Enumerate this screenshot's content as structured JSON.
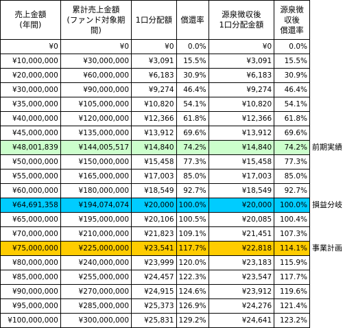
{
  "headers": [
    "売上金額\n(年間)",
    "累計売上金額\n(ファンド対象期間)",
    "1口分配額",
    "償還率",
    "源泉徴収後\n1口分配金額",
    "源泉徴収後\n償還率"
  ],
  "rows": [
    {
      "cells": [
        "¥0",
        "¥0",
        "¥0",
        "0.0%",
        "¥0",
        "0.0%"
      ],
      "note": "",
      "highlight": ""
    },
    {
      "cells": [
        "¥10,000,000",
        "¥30,000,000",
        "¥3,091",
        "15.5%",
        "¥3,091",
        "15.5%"
      ],
      "note": "",
      "highlight": ""
    },
    {
      "cells": [
        "¥20,000,000",
        "¥60,000,000",
        "¥6,183",
        "30.9%",
        "¥6,183",
        "30.9%"
      ],
      "note": "",
      "highlight": ""
    },
    {
      "cells": [
        "¥30,000,000",
        "¥90,000,000",
        "¥9,274",
        "46.4%",
        "¥9,274",
        "46.4%"
      ],
      "note": "",
      "highlight": ""
    },
    {
      "cells": [
        "¥35,000,000",
        "¥105,000,000",
        "¥10,820",
        "54.1%",
        "¥10,820",
        "54.1%"
      ],
      "note": "",
      "highlight": ""
    },
    {
      "cells": [
        "¥40,000,000",
        "¥120,000,000",
        "¥12,366",
        "61.8%",
        "¥12,366",
        "61.8%"
      ],
      "note": "",
      "highlight": ""
    },
    {
      "cells": [
        "¥45,000,000",
        "¥135,000,000",
        "¥13,912",
        "69.6%",
        "¥13,912",
        "69.6%"
      ],
      "note": "",
      "highlight": ""
    },
    {
      "cells": [
        "¥48,001,839",
        "¥144,005,517",
        "¥14,840",
        "74.2%",
        "¥14,840",
        "74.2%"
      ],
      "note": "前期実績",
      "highlight": "green"
    },
    {
      "cells": [
        "¥50,000,000",
        "¥150,000,000",
        "¥15,458",
        "77.3%",
        "¥15,458",
        "77.3%"
      ],
      "note": "",
      "highlight": ""
    },
    {
      "cells": [
        "¥55,000,000",
        "¥165,000,000",
        "¥17,003",
        "85.0%",
        "¥17,003",
        "85.0%"
      ],
      "note": "",
      "highlight": ""
    },
    {
      "cells": [
        "¥60,000,000",
        "¥180,000,000",
        "¥18,549",
        "92.7%",
        "¥18,549",
        "92.7%"
      ],
      "note": "",
      "highlight": ""
    },
    {
      "cells": [
        "¥64,691,358",
        "¥194,074,074",
        "¥20,000",
        "100.0%",
        "¥20,000",
        "100.0%"
      ],
      "note": "損益分岐",
      "highlight": "cyan"
    },
    {
      "cells": [
        "¥65,000,000",
        "¥195,000,000",
        "¥20,106",
        "100.5%",
        "¥20,085",
        "100.4%"
      ],
      "note": "",
      "highlight": ""
    },
    {
      "cells": [
        "¥70,000,000",
        "¥210,000,000",
        "¥21,823",
        "109.1%",
        "¥21,451",
        "107.3%"
      ],
      "note": "",
      "highlight": ""
    },
    {
      "cells": [
        "¥75,000,000",
        "¥225,000,000",
        "¥23,541",
        "117.7%",
        "¥22,818",
        "114.1%"
      ],
      "note": "事業計画",
      "highlight": "orange"
    },
    {
      "cells": [
        "¥80,000,000",
        "¥240,000,000",
        "¥23,999",
        "120.0%",
        "¥23,183",
        "115.9%"
      ],
      "note": "",
      "highlight": ""
    },
    {
      "cells": [
        "¥85,000,000",
        "¥255,000,000",
        "¥24,457",
        "122.3%",
        "¥23,547",
        "117.7%"
      ],
      "note": "",
      "highlight": ""
    },
    {
      "cells": [
        "¥90,000,000",
        "¥270,000,000",
        "¥24,915",
        "124.6%",
        "¥23,912",
        "119.6%"
      ],
      "note": "",
      "highlight": ""
    },
    {
      "cells": [
        "¥95,000,000",
        "¥285,000,000",
        "¥25,373",
        "126.9%",
        "¥24,276",
        "121.4%"
      ],
      "note": "",
      "highlight": ""
    },
    {
      "cells": [
        "¥100,000,000",
        "¥300,000,000",
        "¥25,831",
        "129.2%",
        "¥24,641",
        "123.2%"
      ],
      "note": "",
      "highlight": ""
    }
  ],
  "colors": {
    "green": "#ccffcc",
    "cyan": "#00ccff",
    "orange": "#ffcc00"
  }
}
